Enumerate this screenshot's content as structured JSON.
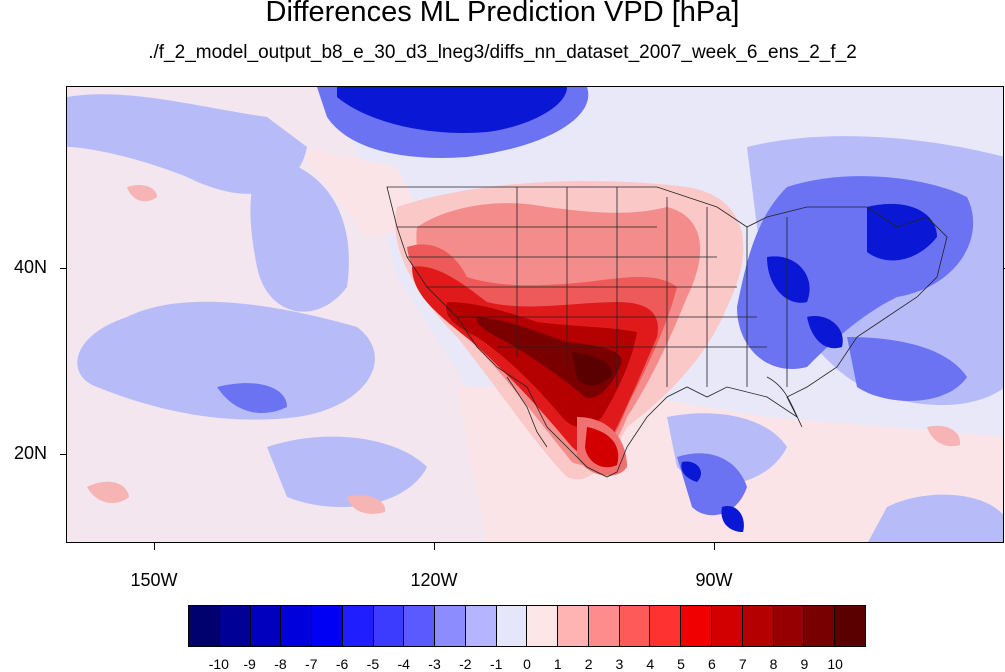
{
  "title": "Differences ML Prediction VPD [hPa]",
  "subtitle": "./f_2_model_output_b8_e_30_d3_lneg3/diffs_nn_dataset_2007_week_6_ens_2_f_2",
  "lat_labels": [
    "40N",
    "20N"
  ],
  "lon_labels": [
    "150W",
    "120W",
    "90W"
  ],
  "colorbar": {
    "labels": [
      "-10",
      "-9",
      "-8",
      "-7",
      "-6",
      "-5",
      "-4",
      "-3",
      "-2",
      "-1",
      "0",
      "1",
      "2",
      "3",
      "4",
      "5",
      "6",
      "7",
      "8",
      "9",
      "10"
    ],
    "colors": [
      "#00006e",
      "#000096",
      "#0000be",
      "#0000dc",
      "#0000f5",
      "#1e1eff",
      "#3c3cff",
      "#5a5aff",
      "#8c8cff",
      "#b4b4ff",
      "#e6e6fa",
      "#fde6e6",
      "#ffb4b4",
      "#ff8c8c",
      "#ff5a5a",
      "#ff3232",
      "#f00000",
      "#d20000",
      "#b40000",
      "#960000",
      "#780000",
      "#5a0000"
    ]
  },
  "legend_colors": {
    "strong_negative": "#0a14d2",
    "moderate_negative": "#5a64f0",
    "weak_negative": "#b4b9fa",
    "near_zero": "#e9e8f8",
    "weak_positive": "#fcdcdc",
    "moderate_positive": "#f07070",
    "strong_positive": "#d20000",
    "extreme_positive": "#7a0000"
  }
}
